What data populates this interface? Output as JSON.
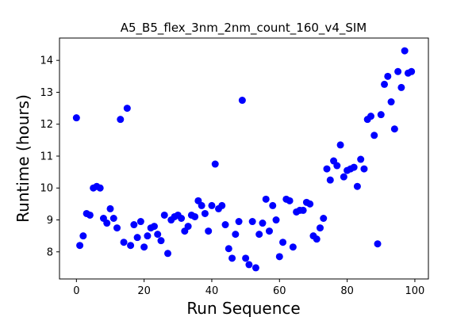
{
  "chart_data": {
    "type": "scatter",
    "title": "A5_B5_flex_3nm_2nm_count_160_v4_SIM",
    "xlabel": "Run Sequence",
    "ylabel": "Runtime (hours)",
    "xlim": [
      -5,
      104
    ],
    "ylim": [
      7.15,
      14.7
    ],
    "xticks": [
      0,
      20,
      40,
      60,
      80,
      100
    ],
    "yticks": [
      8,
      9,
      10,
      11,
      12,
      13,
      14
    ],
    "grid": false,
    "marker_color": "#0000ff",
    "series": [
      {
        "x": [
          0,
          1,
          2,
          3,
          4,
          5,
          6,
          7,
          8,
          9,
          10,
          11,
          12,
          13,
          14,
          15,
          16,
          17,
          18,
          19,
          20,
          21,
          22,
          23,
          24,
          25,
          26,
          27,
          28,
          29,
          30,
          31,
          32,
          33,
          34,
          35,
          36,
          37,
          38,
          39,
          40,
          41,
          42,
          43,
          44,
          45,
          46,
          47,
          48,
          49,
          50,
          51,
          52,
          53,
          54,
          55,
          56,
          57,
          58,
          59,
          60,
          61,
          62,
          63,
          64,
          65,
          66,
          67,
          68,
          69,
          70,
          71,
          72,
          73,
          74,
          75,
          76,
          77,
          78,
          79,
          80,
          81,
          82,
          83,
          84,
          85,
          86,
          87,
          88,
          89,
          90,
          91,
          92,
          93,
          94,
          95,
          96,
          97,
          98,
          99
        ],
        "y": [
          12.2,
          8.2,
          8.5,
          9.2,
          9.15,
          10.0,
          10.05,
          10.0,
          9.05,
          8.9,
          9.35,
          9.05,
          8.75,
          12.15,
          8.3,
          12.5,
          8.2,
          8.85,
          8.45,
          8.95,
          8.15,
          8.5,
          8.75,
          8.8,
          8.55,
          8.35,
          9.15,
          7.95,
          9.0,
          9.1,
          9.15,
          9.05,
          8.65,
          8.8,
          9.15,
          9.1,
          9.6,
          9.45,
          9.2,
          8.65,
          9.45,
          10.75,
          9.35,
          9.45,
          8.85,
          8.1,
          7.8,
          8.55,
          8.95,
          12.75,
          7.8,
          7.6,
          8.95,
          7.5,
          8.55,
          8.9,
          9.65,
          8.65,
          9.45,
          9.0,
          7.85,
          8.3,
          9.65,
          9.6,
          8.15,
          9.25,
          9.3,
          9.3,
          9.55,
          9.5,
          8.5,
          8.4,
          8.75,
          9.05,
          10.6,
          10.25,
          10.85,
          10.7,
          11.35,
          10.35,
          10.55,
          10.6,
          10.65,
          10.05,
          10.9,
          10.6,
          12.15,
          12.25,
          11.65,
          8.25,
          12.3,
          13.25,
          13.5,
          12.7,
          11.85,
          13.65,
          13.15,
          14.3,
          13.6,
          13.65
        ]
      }
    ]
  }
}
